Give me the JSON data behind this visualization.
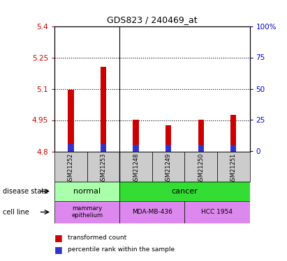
{
  "title": "GDS823 / 240469_at",
  "samples": [
    "GSM21252",
    "GSM21253",
    "GSM21248",
    "GSM21249",
    "GSM21250",
    "GSM21251"
  ],
  "transformed_count": [
    5.095,
    5.205,
    4.952,
    4.925,
    4.952,
    4.975
  ],
  "percentile_bottom": [
    4.8,
    4.8,
    4.8,
    4.8,
    4.8,
    4.8
  ],
  "percentile_top": [
    4.835,
    4.835,
    4.832,
    4.83,
    4.832,
    4.832
  ],
  "ylim": [
    4.8,
    5.4
  ],
  "yticks_left": [
    4.8,
    4.95,
    5.1,
    5.25,
    5.4
  ],
  "yticks_right": [
    0,
    25,
    50,
    75,
    100
  ],
  "bar_color": "#cc0000",
  "percentile_color": "#3333cc",
  "bar_width": 0.18,
  "disease_state_colors": {
    "normal": "#aaffaa",
    "cancer": "#33dd33"
  },
  "cell_line_color": "#dd88ee",
  "grid_yticks": [
    4.95,
    5.1,
    5.25
  ],
  "left_label_color": "#cc0000",
  "right_label_color": "#0000cc",
  "sample_box_color": "#cccccc"
}
